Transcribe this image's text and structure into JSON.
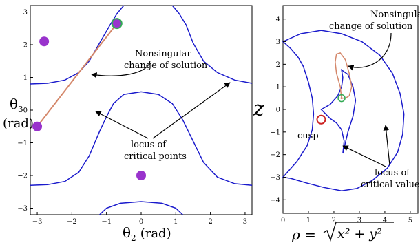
{
  "chart_data": [
    {
      "type": "line",
      "xlabel_sym": "θ",
      "xlabel_sub": "2",
      "xlabel_unit": "(rad)",
      "ylabel_sym": "θ",
      "ylabel_sub": "3",
      "ylabel_unit": "(rad)",
      "xlim": [
        -3.2,
        3.2
      ],
      "ylim": [
        -3.2,
        3.2
      ],
      "xticks": [
        -3,
        -2,
        -1,
        0,
        1,
        2,
        3
      ],
      "yticks": [
        -3,
        -2,
        -1,
        0,
        1,
        2,
        3
      ],
      "xtick_labels": [
        "−3",
        "−2",
        "−1",
        "0",
        "1",
        "2",
        "3"
      ],
      "ytick_labels": [
        "−3",
        "−2",
        "−1",
        "0",
        "1",
        "2",
        "3"
      ],
      "colors": {
        "curve": "#1a1acc",
        "path": "#d4876a",
        "point": "#9933cc",
        "marker": "#33aa55"
      },
      "series": [
        {
          "x": [
            -3.2,
            -2.7,
            -2.2,
            -1.8,
            -1.5,
            -1.2,
            -0.9,
            -0.7,
            -0.5
          ],
          "y": [
            0.8,
            0.82,
            0.92,
            1.15,
            1.5,
            2.05,
            2.6,
            2.95,
            3.2
          ]
        },
        {
          "x": [
            0.9,
            1.1,
            1.3,
            1.5,
            1.8,
            2.2,
            2.7,
            3.2
          ],
          "y": [
            3.2,
            2.95,
            2.6,
            2.05,
            1.5,
            1.15,
            0.92,
            0.82
          ]
        },
        {
          "x": [
            -3.2,
            -2.7,
            -2.2,
            -1.8,
            -1.5,
            -1.2,
            -1.0,
            -0.8,
            -0.5,
            0.0,
            0.5,
            0.9,
            1.2,
            1.5,
            1.8,
            2.2,
            2.7,
            3.2
          ],
          "y": [
            -2.3,
            -2.28,
            -2.18,
            -1.9,
            -1.4,
            -0.65,
            -0.2,
            0.2,
            0.48,
            0.56,
            0.48,
            0.2,
            -0.3,
            -0.95,
            -1.6,
            -2.05,
            -2.25,
            -2.3
          ]
        },
        {
          "x": [
            -1.2,
            -1.0,
            -0.6,
            0.0,
            0.6,
            1.0,
            1.2
          ],
          "y": [
            -3.2,
            -3.0,
            -2.85,
            -2.8,
            -2.85,
            -3.0,
            -3.2
          ]
        }
      ],
      "path": {
        "x": [
          -3.0,
          -0.7
        ],
        "y": [
          -0.5,
          2.65
        ]
      },
      "points": [
        {
          "x": -0.7,
          "y": 2.65
        },
        {
          "x": -2.8,
          "y": 2.1
        },
        {
          "x": -3.0,
          "y": -0.5
        },
        {
          "x": 0.0,
          "y": -2.0
        }
      ],
      "annotations": {
        "nonsingular_line1": "Nonsingular",
        "nonsingular_line2": "change of solution",
        "critical_line1": "locus of",
        "critical_line2": "critical points"
      }
    },
    {
      "type": "line",
      "xlabel_lhs": "ρ = ",
      "xlabel_rad": "x² + y²",
      "ylabel": "z",
      "xlim": [
        0,
        5.3
      ],
      "ylim": [
        -4.6,
        4.6
      ],
      "xticks": [
        0,
        1,
        2,
        3,
        4,
        5
      ],
      "yticks": [
        -4,
        -3,
        -2,
        -1,
        0,
        1,
        2,
        3,
        4
      ],
      "xtick_labels": [
        "0",
        "1",
        "2",
        "3",
        "4",
        "5"
      ],
      "ytick_labels": [
        "−4",
        "−3",
        "−2",
        "−1",
        "0",
        "1",
        "2",
        "3",
        "4"
      ],
      "colors": {
        "curve": "#1a1acc",
        "path": "#d4876a",
        "cusp": "#cc2222",
        "marker": "#33aa55"
      },
      "series": [
        {
          "x": [
            0,
            0.7,
            1.5,
            2.3,
            3.1,
            3.8,
            4.3,
            4.6,
            4.75,
            4.7,
            4.5,
            4.1,
            3.5,
            2.9,
            2.3,
            1.6,
            0.9,
            0.3,
            0,
            0.55,
            0.95,
            1.15,
            1.2,
            1.15,
            1.0,
            0.8,
            0.6,
            0.3,
            0
          ],
          "y": [
            3.0,
            3.35,
            3.5,
            3.35,
            3.0,
            2.4,
            1.6,
            0.7,
            -0.2,
            -1.1,
            -1.9,
            -2.6,
            -3.15,
            -3.5,
            -3.6,
            -3.45,
            -3.25,
            -3.05,
            -3.0,
            -2.3,
            -1.6,
            -0.9,
            -0.2,
            0.5,
            1.2,
            1.9,
            2.3,
            2.7,
            3.0
          ]
        },
        {
          "x": [
            1.5,
            1.85,
            2.15,
            2.3,
            2.35,
            2.3,
            2.55,
            2.75,
            2.85,
            2.75,
            2.55,
            2.35,
            2.4,
            2.3,
            2.1,
            1.85,
            1.5
          ],
          "y": [
            0.0,
            0.22,
            0.6,
            1.0,
            1.4,
            1.75,
            1.55,
            1.0,
            0.4,
            -0.3,
            -1.0,
            -1.95,
            -1.4,
            -0.9,
            -0.6,
            -0.4,
            0.0
          ]
        }
      ],
      "path": {
        "x": [
          2.3,
          2.25,
          2.1,
          2.05,
          2.1,
          2.25,
          2.45,
          2.6,
          2.7,
          2.6,
          2.45,
          2.3
        ],
        "y": [
          0.5,
          1.0,
          1.6,
          2.1,
          2.45,
          2.5,
          2.2,
          1.6,
          1.0,
          0.6,
          0.5,
          0.5
        ]
      },
      "cusp": {
        "x": 1.5,
        "y": -0.45
      },
      "marker": {
        "x": 2.3,
        "y": 0.5
      },
      "annotations": {
        "nonsingular_line1": "Nonsingular",
        "nonsingular_line2": "change of solution",
        "cusp": "cusp",
        "critical_line1": "locus of",
        "critical_line2": "critical values"
      }
    }
  ]
}
